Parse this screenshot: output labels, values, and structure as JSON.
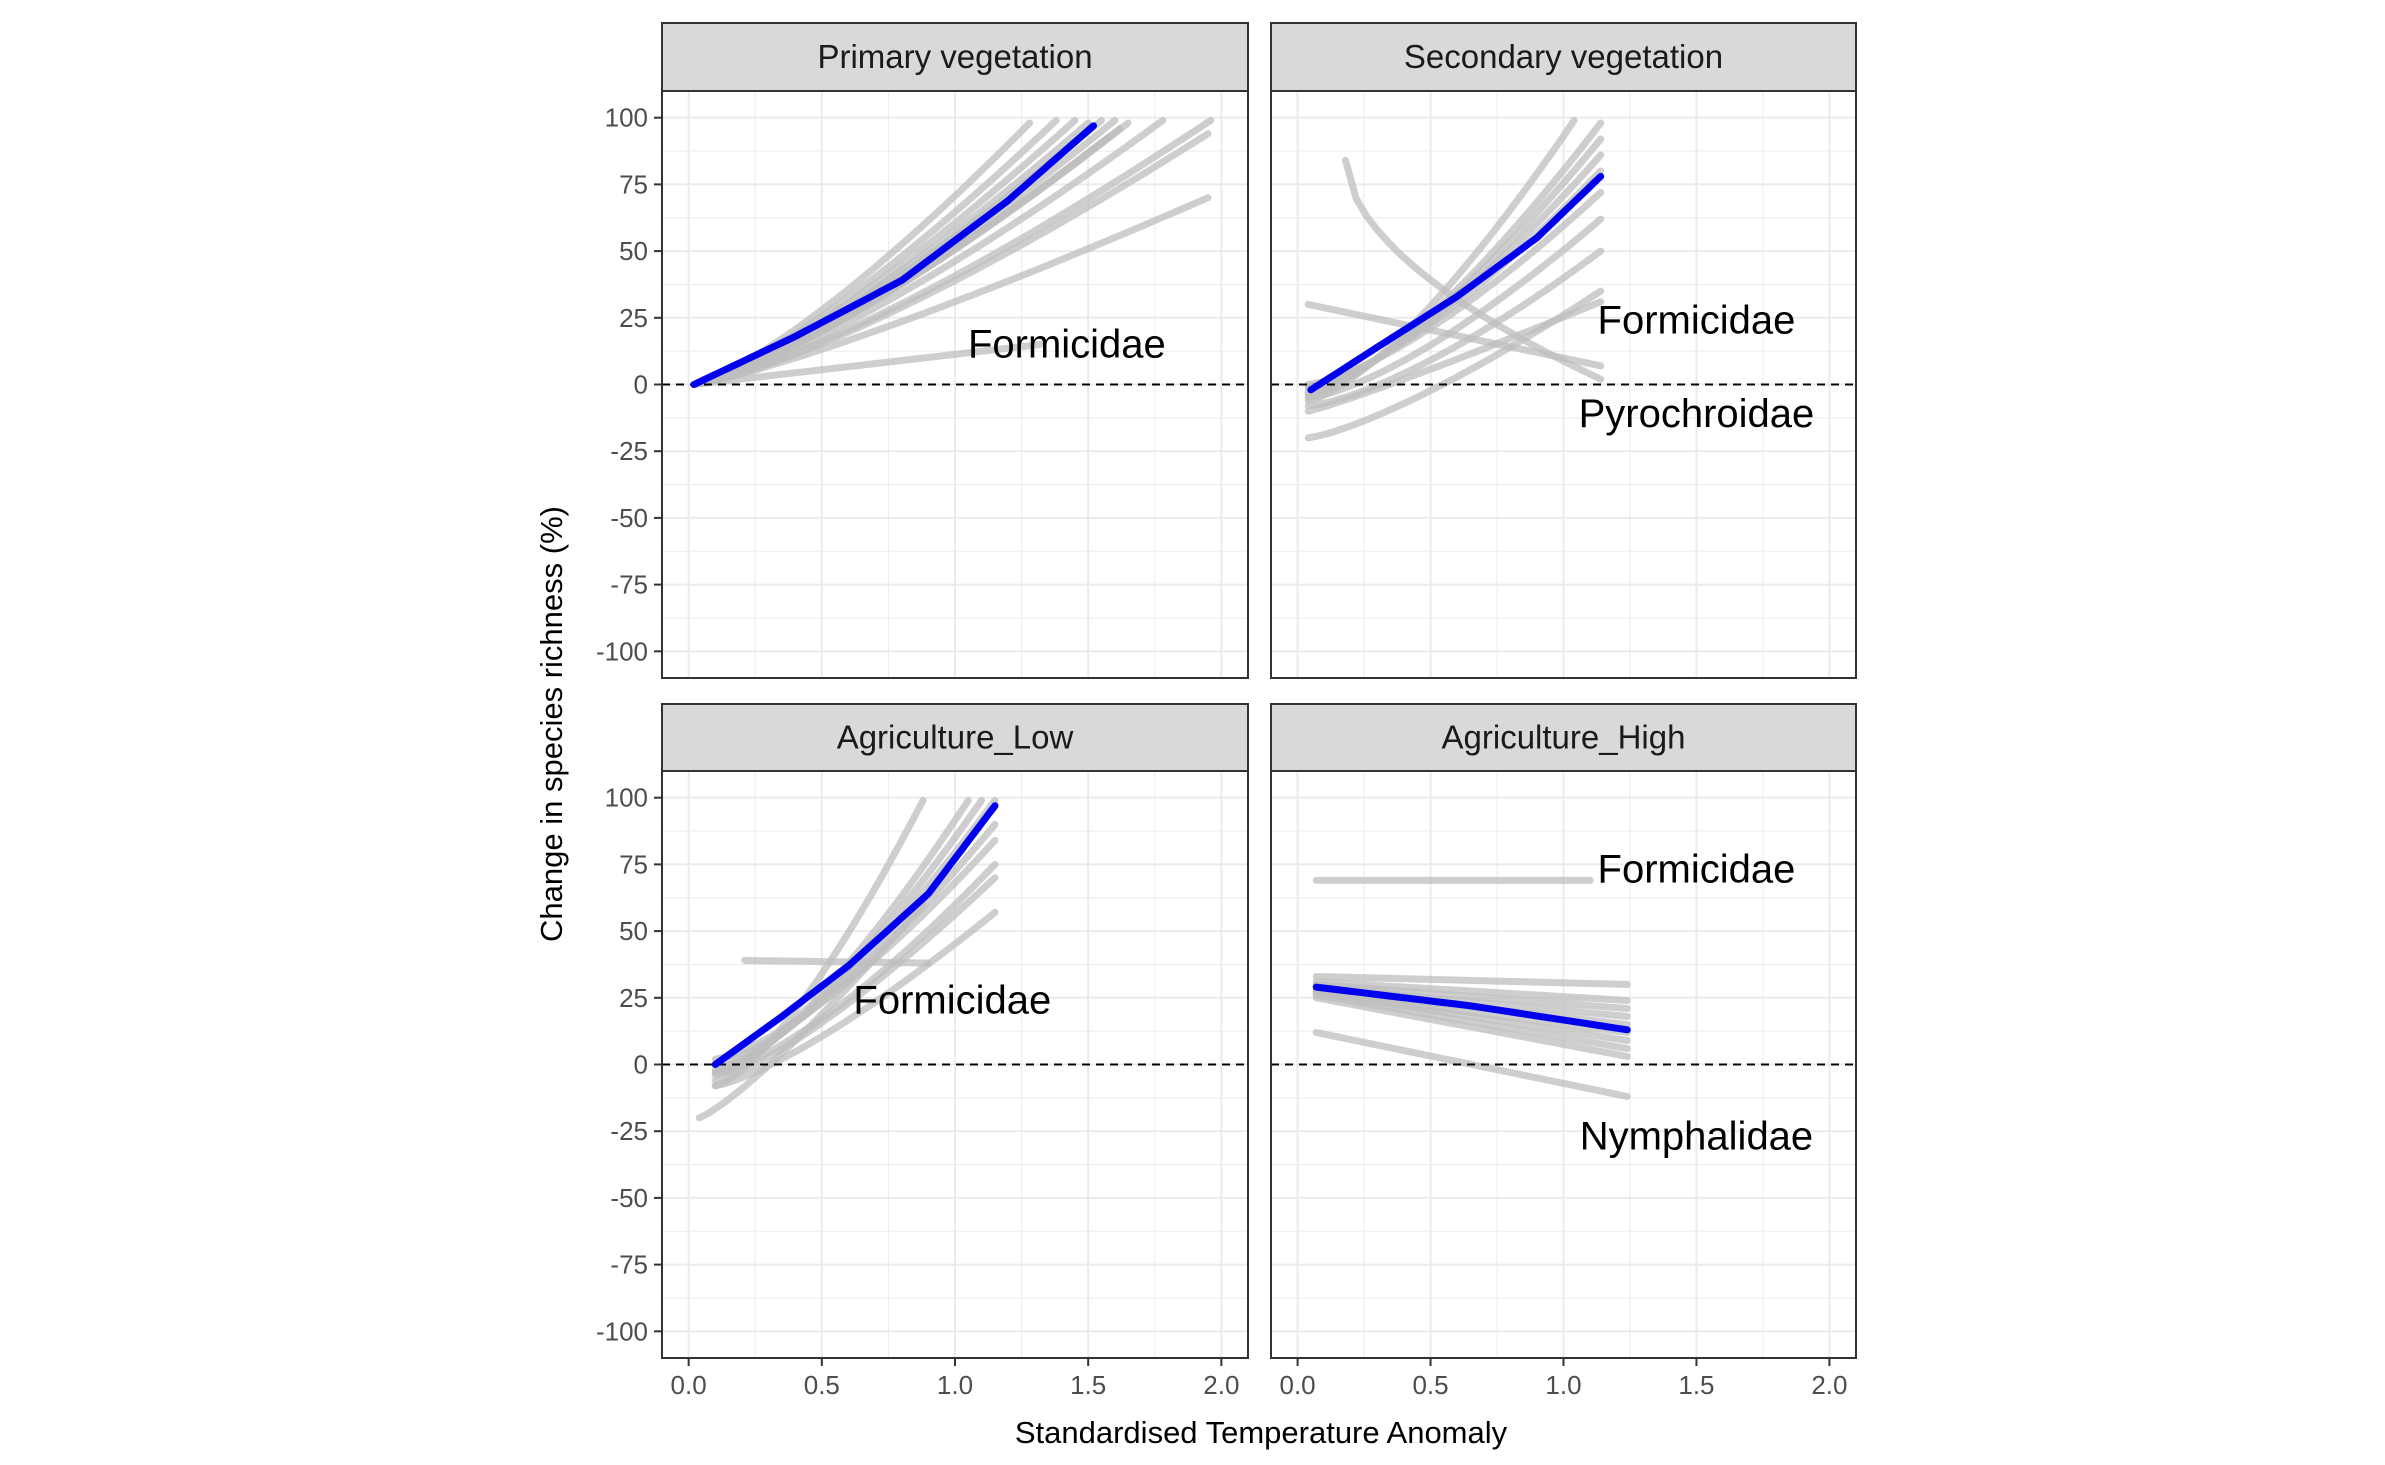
{
  "chart_data": {
    "type": "line",
    "xlabel": "Standardised Temperature Anomaly",
    "ylabel": "Change in species richness (%)",
    "xlim": [
      -0.1,
      2.1
    ],
    "ylim": [
      -110,
      110
    ],
    "x_ticks": [
      0.0,
      0.5,
      1.0,
      1.5,
      2.0
    ],
    "x_tick_labels": [
      "0.0",
      "0.5",
      "1.0",
      "1.5",
      "2.0"
    ],
    "y_ticks": [
      100,
      75,
      50,
      25,
      0,
      -25,
      -50,
      -75,
      -100
    ],
    "y_tick_labels": [
      "100",
      "75",
      "50",
      "25",
      "0",
      "-25",
      "-50",
      "-75",
      "-100"
    ],
    "reference_line_y": 0,
    "grid": true,
    "colors": {
      "main_line": "#0000ee",
      "family_lines": "#bdbdbd",
      "strip_bg": "#d9d9d9",
      "panel_border": "#333333",
      "grid": "#ebebeb"
    },
    "panels": [
      {
        "title": "Primary vegetation",
        "main": {
          "x": [
            0.02,
            0.4,
            0.8,
            1.2,
            1.52
          ],
          "y": [
            0,
            18,
            39,
            69,
            97
          ]
        },
        "families": [
          {
            "x": [
              0.02,
              1.28
            ],
            "y": [
              0,
              98
            ],
            "curve": 1.3
          },
          {
            "x": [
              0.02,
              1.38
            ],
            "y": [
              0,
              99
            ],
            "curve": 1.3
          },
          {
            "x": [
              0.02,
              1.45
            ],
            "y": [
              0,
              99
            ],
            "curve": 1.3
          },
          {
            "x": [
              0.02,
              1.5
            ],
            "y": [
              0,
              98
            ],
            "curve": 1.3
          },
          {
            "x": [
              0.02,
              1.55
            ],
            "y": [
              0,
              99
            ],
            "curve": 1.3
          },
          {
            "x": [
              0.02,
              1.6
            ],
            "y": [
              0,
              99
            ],
            "curve": 1.3
          },
          {
            "x": [
              0.02,
              1.65
            ],
            "y": [
              0,
              98
            ],
            "curve": 1.3
          },
          {
            "x": [
              0.02,
              1.58
            ],
            "y": [
              0,
              93
            ],
            "curve": 1.3
          },
          {
            "x": [
              0.02,
              1.62
            ],
            "y": [
              0,
              96
            ],
            "curve": 1.3
          },
          {
            "x": [
              0.02,
              1.78
            ],
            "y": [
              0,
              99
            ],
            "curve": 1.3
          },
          {
            "x": [
              0.02,
              1.96
            ],
            "y": [
              0,
              99
            ],
            "curve": 1.3
          },
          {
            "x": [
              0.02,
              1.95
            ],
            "y": [
              0,
              94
            ],
            "curve": 1.3
          },
          {
            "x": [
              0.02,
              1.95
            ],
            "y": [
              0,
              70
            ],
            "curve": 1.2
          },
          {
            "x": [
              0.02,
              1.32
            ],
            "y": [
              0,
              15
            ],
            "curve": 1.0
          }
        ],
        "labels": [
          {
            "text": "Formicidae",
            "x": 1.42,
            "y": 15
          }
        ]
      },
      {
        "title": "Secondary vegetation",
        "main": {
          "x": [
            0.05,
            0.3,
            0.6,
            0.9,
            1.14
          ],
          "y": [
            -2,
            14,
            33,
            55,
            78
          ]
        },
        "families": [
          {
            "x": [
              0.04,
              1.04
            ],
            "y": [
              -6,
              99
            ],
            "curve": 1.4
          },
          {
            "x": [
              0.04,
              1.14
            ],
            "y": [
              -4,
              98
            ],
            "curve": 1.4
          },
          {
            "x": [
              0.04,
              1.14
            ],
            "y": [
              -3,
              92
            ],
            "curve": 1.4
          },
          {
            "x": [
              0.04,
              1.14
            ],
            "y": [
              -2,
              86
            ],
            "curve": 1.4
          },
          {
            "x": [
              0.04,
              1.14
            ],
            "y": [
              -1,
              80
            ],
            "curve": 1.4
          },
          {
            "x": [
              0.04,
              1.14
            ],
            "y": [
              0,
              72
            ],
            "curve": 1.4
          },
          {
            "x": [
              0.04,
              1.14
            ],
            "y": [
              -5,
              62
            ],
            "curve": 1.4
          },
          {
            "x": [
              0.04,
              1.14
            ],
            "y": [
              -8,
              50
            ],
            "curve": 1.4
          },
          {
            "x": [
              0.04,
              1.14
            ],
            "y": [
              -20,
              35
            ],
            "curve": 1.3
          },
          {
            "x": [
              0.04,
              1.14
            ],
            "y": [
              -10,
              31
            ],
            "curve": 1.1
          },
          {
            "x": [
              0.04,
              1.14
            ],
            "y": [
              30,
              7
            ],
            "curve": 1.0
          },
          {
            "x": [
              0.18,
              1.14
            ],
            "y": [
              84,
              2
            ],
            "curve": 0.55
          }
        ],
        "labels": [
          {
            "text": "Formicidae",
            "x": 1.5,
            "y": 24
          },
          {
            "text": "Pyrochroidae",
            "x": 1.5,
            "y": -11
          }
        ]
      },
      {
        "title": "Agriculture_Low",
        "main": {
          "x": [
            0.1,
            0.35,
            0.6,
            0.9,
            1.15
          ],
          "y": [
            0,
            18,
            37,
            64,
            97
          ]
        },
        "families": [
          {
            "x": [
              0.1,
              0.88
            ],
            "y": [
              -8,
              99
            ],
            "curve": 1.4
          },
          {
            "x": [
              0.1,
              1.05
            ],
            "y": [
              -4,
              99
            ],
            "curve": 1.4
          },
          {
            "x": [
              0.1,
              1.1
            ],
            "y": [
              -3,
              99
            ],
            "curve": 1.4
          },
          {
            "x": [
              0.1,
              1.15
            ],
            "y": [
              -2,
              99
            ],
            "curve": 1.4
          },
          {
            "x": [
              0.1,
              1.15
            ],
            "y": [
              0,
              90
            ],
            "curve": 1.4
          },
          {
            "x": [
              0.1,
              1.15
            ],
            "y": [
              2,
              84
            ],
            "curve": 1.4
          },
          {
            "x": [
              0.1,
              1.15
            ],
            "y": [
              -3,
              75
            ],
            "curve": 1.4
          },
          {
            "x": [
              0.1,
              1.15
            ],
            "y": [
              -6,
              70
            ],
            "curve": 1.3
          },
          {
            "x": [
              0.1,
              1.15
            ],
            "y": [
              -8,
              57
            ],
            "curve": 1.3
          },
          {
            "x": [
              0.04,
              0.88
            ],
            "y": [
              -20,
              60
            ],
            "curve": 1.2
          },
          {
            "x": [
              0.21,
              0.9
            ],
            "y": [
              39,
              38
            ],
            "curve": 1.0
          }
        ],
        "labels": [
          {
            "text": "Formicidae",
            "x": 0.99,
            "y": 24
          }
        ]
      },
      {
        "title": "Agriculture_High",
        "main": {
          "x": [
            0.07,
            0.65,
            1.24
          ],
          "y": [
            29,
            22,
            13
          ]
        },
        "families": [
          {
            "x": [
              0.07,
              1.24
            ],
            "y": [
              33,
              30
            ],
            "curve": 1.0
          },
          {
            "x": [
              0.07,
              1.24
            ],
            "y": [
              31,
              24
            ],
            "curve": 1.0
          },
          {
            "x": [
              0.07,
              1.24
            ],
            "y": [
              30,
              21
            ],
            "curve": 1.0
          },
          {
            "x": [
              0.07,
              1.24
            ],
            "y": [
              29,
              18
            ],
            "curve": 1.0
          },
          {
            "x": [
              0.07,
              1.24
            ],
            "y": [
              28,
              15
            ],
            "curve": 1.0
          },
          {
            "x": [
              0.07,
              1.24
            ],
            "y": [
              27,
              12
            ],
            "curve": 1.0
          },
          {
            "x": [
              0.07,
              1.24
            ],
            "y": [
              27,
              9
            ],
            "curve": 1.0
          },
          {
            "x": [
              0.07,
              1.24
            ],
            "y": [
              26,
              6
            ],
            "curve": 1.0
          },
          {
            "x": [
              0.07,
              1.24
            ],
            "y": [
              25,
              3
            ],
            "curve": 1.0
          },
          {
            "x": [
              0.07,
              1.24
            ],
            "y": [
              12,
              -12
            ],
            "curve": 1.0
          },
          {
            "x": [
              0.07,
              1.1
            ],
            "y": [
              69,
              69
            ],
            "curve": 1.0
          }
        ],
        "labels": [
          {
            "text": "Formicidae",
            "x": 1.5,
            "y": 73
          },
          {
            "text": "Nymphalidae",
            "x": 1.5,
            "y": -27
          }
        ]
      }
    ]
  }
}
